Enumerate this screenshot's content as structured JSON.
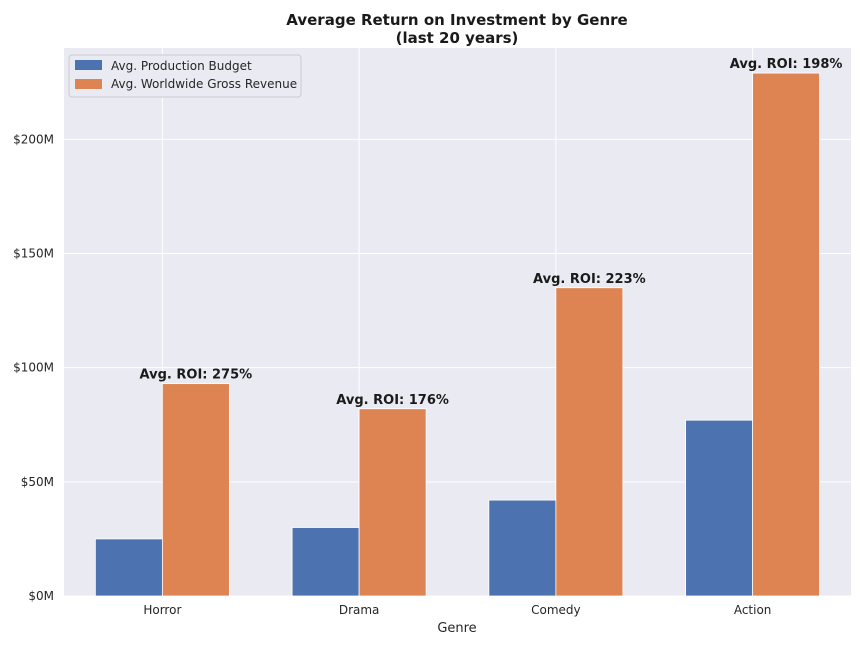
{
  "chart_data": {
    "type": "bar",
    "title_line1": "Average Return on Investment by Genre",
    "title_line2": "(last 20 years)",
    "xlabel": "Genre",
    "ylabel": "",
    "categories": [
      "Horror",
      "Drama",
      "Comedy",
      "Action"
    ],
    "series": [
      {
        "name": "Avg. Production Budget",
        "values": [
          25,
          30,
          42,
          77
        ],
        "color": "#4c72b0"
      },
      {
        "name": "Avg. Worldwide Gross Revenue",
        "values": [
          93,
          82,
          135,
          229
        ],
        "color": "#dd8452"
      }
    ],
    "bar_labels": [
      "Avg. ROI: 275%",
      "Avg. ROI: 176%",
      "Avg. ROI: 223%",
      "Avg. ROI: 198%"
    ],
    "y_ticks": [
      {
        "value": 0,
        "label": "$0M"
      },
      {
        "value": 50,
        "label": "$50M"
      },
      {
        "value": 100,
        "label": "$100M"
      },
      {
        "value": 150,
        "label": "$150M"
      },
      {
        "value": 200,
        "label": "$200M"
      }
    ],
    "ylim": [
      0,
      240
    ],
    "units": "USD millions",
    "grid": true,
    "legend_position": "top-left",
    "background_color": "#eaeaf2",
    "grid_color": "#ffffff"
  }
}
